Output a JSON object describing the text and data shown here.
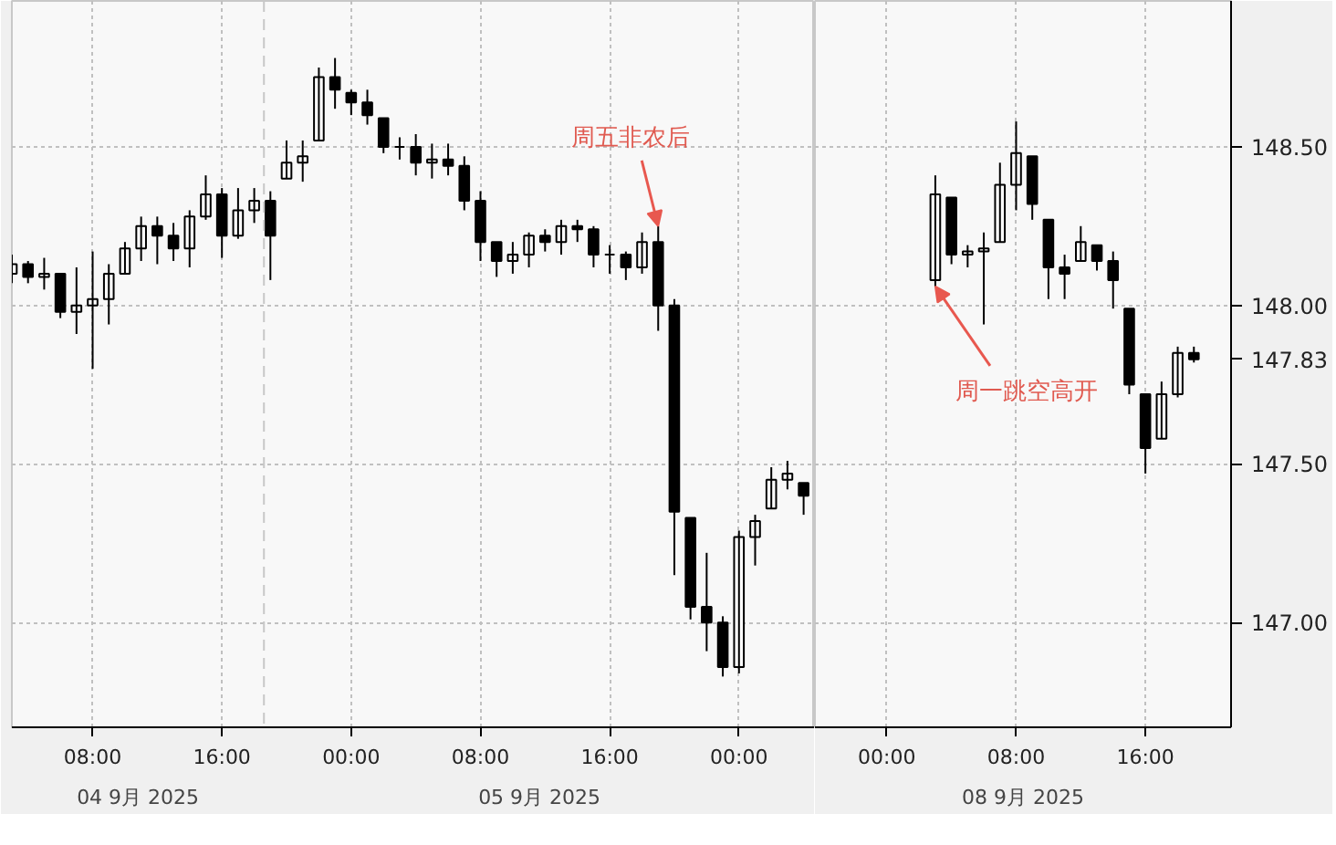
{
  "chart_data": [
    {
      "type": "candlestick",
      "x": [
        "2025-09-04T03:00",
        "2025-09-04T04:00",
        "2025-09-04T05:00",
        "2025-09-04T06:00",
        "2025-09-04T07:00",
        "2025-09-04T08:00",
        "2025-09-04T09:00",
        "2025-09-04T10:00",
        "2025-09-04T11:00",
        "2025-09-04T12:00",
        "2025-09-04T13:00",
        "2025-09-04T14:00",
        "2025-09-04T15:00",
        "2025-09-04T16:00",
        "2025-09-04T17:00",
        "2025-09-04T18:00",
        "2025-09-04T19:00",
        "2025-09-04T20:00",
        "2025-09-04T21:00",
        "2025-09-04T22:00",
        "2025-09-04T23:00",
        "2025-09-05T00:00",
        "2025-09-05T01:00",
        "2025-09-05T02:00",
        "2025-09-05T03:00",
        "2025-09-05T04:00",
        "2025-09-05T05:00",
        "2025-09-05T06:00",
        "2025-09-05T07:00",
        "2025-09-05T08:00",
        "2025-09-05T09:00",
        "2025-09-05T10:00",
        "2025-09-05T11:00",
        "2025-09-05T12:00",
        "2025-09-05T13:00",
        "2025-09-05T14:00",
        "2025-09-05T15:00",
        "2025-09-05T16:00",
        "2025-09-05T17:00",
        "2025-09-05T18:00",
        "2025-09-05T19:00",
        "2025-09-05T20:00",
        "2025-09-05T21:00",
        "2025-09-05T22:00",
        "2025-09-05T23:00",
        "2025-09-06T00:00",
        "2025-09-06T01:00",
        "2025-09-06T02:00",
        "2025-09-06T03:00",
        "2025-09-06T04:00"
      ],
      "ohlc": [
        [
          148.1,
          148.16,
          148.07,
          148.13
        ],
        [
          148.13,
          148.14,
          148.07,
          148.09
        ],
        [
          148.09,
          148.15,
          148.05,
          148.1
        ],
        [
          148.1,
          148.1,
          147.96,
          147.98
        ],
        [
          147.98,
          148.12,
          147.91,
          148.0
        ],
        [
          148.0,
          148.17,
          147.8,
          148.02
        ],
        [
          148.02,
          148.13,
          147.94,
          148.1
        ],
        [
          148.1,
          148.2,
          148.1,
          148.18
        ],
        [
          148.18,
          148.28,
          148.14,
          148.25
        ],
        [
          148.25,
          148.28,
          148.13,
          148.22
        ],
        [
          148.22,
          148.26,
          148.14,
          148.18
        ],
        [
          148.18,
          148.3,
          148.12,
          148.28
        ],
        [
          148.28,
          148.41,
          148.27,
          148.35
        ],
        [
          148.35,
          148.37,
          148.15,
          148.22
        ],
        [
          148.22,
          148.37,
          148.21,
          148.3
        ],
        [
          148.3,
          148.37,
          148.26,
          148.33
        ],
        [
          148.33,
          148.36,
          148.08,
          148.22
        ],
        [
          148.4,
          148.52,
          148.4,
          148.45
        ],
        [
          148.45,
          148.52,
          148.39,
          148.47
        ],
        [
          148.52,
          148.75,
          148.52,
          148.72
        ],
        [
          148.72,
          148.78,
          148.62,
          148.68
        ],
        [
          148.67,
          148.68,
          148.6,
          148.64
        ],
        [
          148.64,
          148.68,
          148.57,
          148.6
        ],
        [
          148.59,
          148.59,
          148.48,
          148.5
        ],
        [
          148.5,
          148.53,
          148.46,
          148.5
        ],
        [
          148.5,
          148.54,
          148.41,
          148.45
        ],
        [
          148.45,
          148.51,
          148.4,
          148.46
        ],
        [
          148.46,
          148.51,
          148.41,
          148.44
        ],
        [
          148.44,
          148.47,
          148.3,
          148.33
        ],
        [
          148.33,
          148.36,
          148.14,
          148.2
        ],
        [
          148.2,
          148.2,
          148.09,
          148.14
        ],
        [
          148.14,
          148.2,
          148.1,
          148.16
        ],
        [
          148.16,
          148.23,
          148.12,
          148.22
        ],
        [
          148.22,
          148.24,
          148.17,
          148.2
        ],
        [
          148.2,
          148.27,
          148.16,
          148.25
        ],
        [
          148.25,
          148.27,
          148.2,
          148.24
        ],
        [
          148.24,
          148.25,
          148.12,
          148.16
        ],
        [
          148.16,
          148.19,
          148.1,
          148.16
        ],
        [
          148.16,
          148.17,
          148.08,
          148.12
        ],
        [
          148.12,
          148.23,
          148.1,
          148.2
        ],
        [
          148.2,
          148.25,
          147.92,
          148.0
        ],
        [
          148.0,
          148.02,
          147.15,
          147.35
        ],
        [
          147.33,
          147.33,
          147.01,
          147.05
        ],
        [
          147.05,
          147.22,
          146.91,
          147.0
        ],
        [
          147.0,
          147.02,
          146.83,
          146.86
        ],
        [
          146.86,
          147.29,
          146.84,
          147.27
        ],
        [
          147.27,
          147.34,
          147.18,
          147.32
        ],
        [
          147.36,
          147.49,
          147.36,
          147.45
        ],
        [
          147.45,
          147.51,
          147.42,
          147.47
        ],
        [
          147.44,
          147.44,
          147.34,
          147.4
        ]
      ],
      "color": "#000000",
      "xlim": [
        "2025-09-04T03:00",
        "2025-09-06T04:42"
      ],
      "xticks": [
        {
          "value": "2025-09-04T08:00",
          "label": "08:00"
        },
        {
          "value": "2025-09-04T16:00",
          "label": "16:00"
        },
        {
          "value": "2025-09-05T00:00",
          "label": "00:00"
        },
        {
          "value": "2025-09-05T08:00",
          "label": "08:00"
        },
        {
          "value": "2025-09-05T16:00",
          "label": "16:00"
        },
        {
          "value": "2025-09-06T00:00",
          "label": "00:00"
        }
      ],
      "ylim": [
        146.67,
        148.96
      ],
      "yticks": [
        147,
        147.5,
        148,
        148.5
      ],
      "tick_labels": "x",
      "grid": true,
      "ref_lines": [
        {
          "axis": "x",
          "value": "2025-09-04T18:36",
          "line_style": "dashed",
          "color": "#c8c8c8"
        }
      ],
      "annotations": [
        {
          "text": "周五非农后",
          "x": "2025-09-05T19:00",
          "y": 148.25
        },
        "04 9月 2025",
        "05 9月 2025"
      ]
    },
    {
      "type": "candlestick",
      "x": [
        "2025-09-08T03:00",
        "2025-09-08T04:00",
        "2025-09-08T05:00",
        "2025-09-08T06:00",
        "2025-09-08T07:00",
        "2025-09-08T08:00",
        "2025-09-08T09:00",
        "2025-09-08T10:00",
        "2025-09-08T11:00",
        "2025-09-08T12:00",
        "2025-09-08T13:00",
        "2025-09-08T14:00",
        "2025-09-08T15:00",
        "2025-09-08T16:00",
        "2025-09-08T17:00",
        "2025-09-08T18:00",
        "2025-09-08T19:00"
      ],
      "ohlc": [
        [
          148.08,
          148.41,
          148.06,
          148.35
        ],
        [
          148.34,
          148.34,
          148.13,
          148.16
        ],
        [
          148.16,
          148.19,
          148.12,
          148.17
        ],
        [
          148.17,
          148.23,
          147.94,
          148.18
        ],
        [
          148.2,
          148.45,
          148.2,
          148.38
        ],
        [
          148.38,
          148.58,
          148.3,
          148.48
        ],
        [
          148.47,
          148.47,
          148.27,
          148.32
        ],
        [
          148.27,
          148.27,
          148.02,
          148.12
        ],
        [
          148.12,
          148.16,
          148.02,
          148.1
        ],
        [
          148.14,
          148.25,
          148.14,
          148.2
        ],
        [
          148.19,
          148.19,
          148.11,
          148.14
        ],
        [
          148.14,
          148.17,
          147.99,
          148.08
        ],
        [
          147.99,
          147.99,
          147.72,
          147.75
        ],
        [
          147.72,
          147.72,
          147.47,
          147.55
        ],
        [
          147.58,
          147.76,
          147.58,
          147.72
        ],
        [
          147.72,
          147.87,
          147.71,
          147.85
        ],
        [
          147.85,
          147.87,
          147.82,
          147.83
        ]
      ],
      "color": "#000000",
      "xlim": [
        "2025-09-07T19:33",
        "2025-09-08T21:18"
      ],
      "xticks": [
        {
          "value": "2025-09-08T00:00",
          "label": "00:00"
        },
        {
          "value": "2025-09-08T08:00",
          "label": "08:00"
        },
        {
          "value": "2025-09-08T16:00",
          "label": "16:00"
        }
      ],
      "ylim": [
        146.67,
        148.96
      ],
      "yticks": [
        {
          "value": 147,
          "label": "147.00"
        },
        {
          "value": 147.5,
          "label": "147.50"
        },
        {
          "value": 147.83,
          "label": "147.83"
        },
        {
          "value": 148,
          "label": "148.00"
        },
        {
          "value": 148.5,
          "label": "148.50"
        }
      ],
      "grid": true,
      "annotations": [
        {
          "text": "周一跳空高开",
          "x": "2025-09-08T03:00",
          "y": 148.06
        },
        "08 9月 2025"
      ]
    }
  ]
}
